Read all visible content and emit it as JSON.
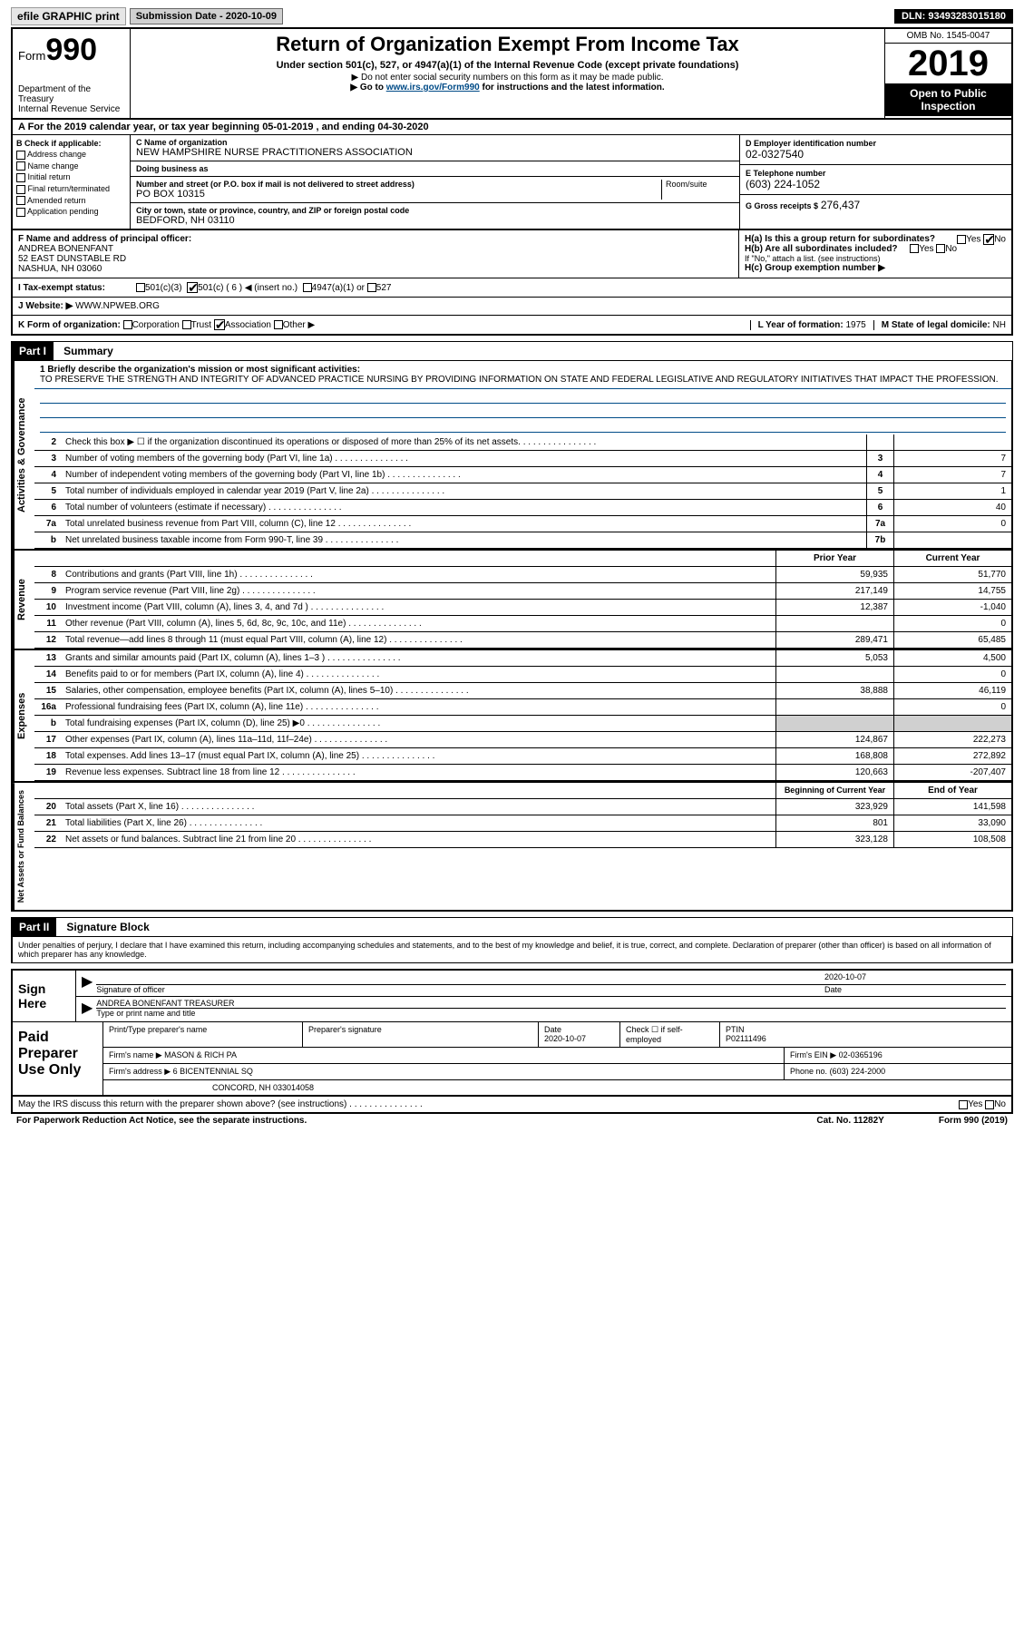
{
  "topbar": {
    "efile": "efile GRAPHIC print",
    "submission": "Submission Date - 2020-10-09",
    "dln": "DLN: 93493283015180"
  },
  "header": {
    "form_prefix": "Form",
    "form_num": "990",
    "dept": "Department of the Treasury\nInternal Revenue Service",
    "title": "Return of Organization Exempt From Income Tax",
    "subtitle": "Under section 501(c), 527, or 4947(a)(1) of the Internal Revenue Code (except private foundations)",
    "ssn_note": "▶ Do not enter social security numbers on this form as it may be made public.",
    "goto": "▶ Go to www.irs.gov/Form990 for instructions and the latest information.",
    "goto_url": "www.irs.gov/Form990",
    "omb": "OMB No. 1545-0047",
    "year": "2019",
    "open_pub": "Open to Public Inspection"
  },
  "tax_year": "A For the 2019 calendar year, or tax year beginning 05-01-2019     , and ending 04-30-2020",
  "b_checks": {
    "title": "B Check if applicable:",
    "items": [
      "Address change",
      "Name change",
      "Initial return",
      "Final return/terminated",
      "Amended return",
      "Application pending"
    ]
  },
  "c_name": {
    "lbl": "C Name of organization",
    "val": "NEW HAMPSHIRE NURSE PRACTITIONERS ASSOCIATION",
    "dba_lbl": "Doing business as"
  },
  "addr": {
    "lbl": "Number and street (or P.O. box if mail is not delivered to street address)",
    "val": "PO BOX 10315",
    "room_lbl": "Room/suite",
    "city_lbl": "City or town, state or province, country, and ZIP or foreign postal code",
    "city_val": "BEDFORD, NH  03110"
  },
  "d_ein": {
    "lbl": "D Employer identification number",
    "val": "02-0327540"
  },
  "e_tel": {
    "lbl": "E Telephone number",
    "val": "(603) 224-1052"
  },
  "g_gross": {
    "lbl": "G Gross receipts $",
    "val": "276,437"
  },
  "f_officer": {
    "lbl": "F  Name and address of principal officer:",
    "name": "ANDREA BONENFANT",
    "addr1": "52 EAST DUNSTABLE RD",
    "addr2": "NASHUA, NH  03060"
  },
  "h": {
    "a_lbl": "H(a)  Is this a group return for subordinates?",
    "b_lbl": "H(b)  Are all subordinates included?",
    "note": "If \"No,\" attach a list. (see instructions)",
    "c_lbl": "H(c)  Group exemption number ▶"
  },
  "i_status": {
    "lbl": "I   Tax-exempt status:",
    "opts": [
      "501(c)(3)",
      "501(c) ( 6 ) ◀ (insert no.)",
      "4947(a)(1) or",
      "527"
    ]
  },
  "j_web": {
    "lbl": "J   Website: ▶",
    "val": "WWW.NPWEB.ORG"
  },
  "k_form": {
    "lbl": "K Form of organization:",
    "opts": [
      "Corporation",
      "Trust",
      "Association",
      "Other ▶"
    ]
  },
  "l_year": {
    "lbl": "L Year of formation:",
    "val": "1975"
  },
  "m_state": {
    "lbl": "M State of legal domicile:",
    "val": "NH"
  },
  "part1": {
    "hdr": "Part I",
    "title": "Summary"
  },
  "mission": {
    "line1_lbl": "1  Briefly describe the organization's mission or most significant activities:",
    "text": "TO PRESERVE THE STRENGTH AND INTEGRITY OF ADVANCED PRACTICE NURSING BY PROVIDING INFORMATION ON STATE AND FEDERAL LEGISLATIVE AND REGULATORY INITIATIVES THAT IMPACT THE PROFESSION."
  },
  "gov_lines": [
    {
      "n": "2",
      "t": "Check this box ▶ ☐  if the organization discontinued its operations or disposed of more than 25% of its net assets.",
      "box": "",
      "v": ""
    },
    {
      "n": "3",
      "t": "Number of voting members of the governing body (Part VI, line 1a)",
      "box": "3",
      "v": "7"
    },
    {
      "n": "4",
      "t": "Number of independent voting members of the governing body (Part VI, line 1b)",
      "box": "4",
      "v": "7"
    },
    {
      "n": "5",
      "t": "Total number of individuals employed in calendar year 2019 (Part V, line 2a)",
      "box": "5",
      "v": "1"
    },
    {
      "n": "6",
      "t": "Total number of volunteers (estimate if necessary)",
      "box": "6",
      "v": "40"
    },
    {
      "n": "7a",
      "t": "Total unrelated business revenue from Part VIII, column (C), line 12",
      "box": "7a",
      "v": "0"
    },
    {
      "n": "b",
      "t": "Net unrelated business taxable income from Form 990-T, line 39",
      "box": "7b",
      "v": ""
    }
  ],
  "rev_hdr": {
    "prior": "Prior Year",
    "current": "Current Year"
  },
  "rev_lines": [
    {
      "n": "8",
      "t": "Contributions and grants (Part VIII, line 1h)",
      "p": "59,935",
      "c": "51,770"
    },
    {
      "n": "9",
      "t": "Program service revenue (Part VIII, line 2g)",
      "p": "217,149",
      "c": "14,755"
    },
    {
      "n": "10",
      "t": "Investment income (Part VIII, column (A), lines 3, 4, and 7d )",
      "p": "12,387",
      "c": "-1,040"
    },
    {
      "n": "11",
      "t": "Other revenue (Part VIII, column (A), lines 5, 6d, 8c, 9c, 10c, and 11e)",
      "p": "",
      "c": "0"
    },
    {
      "n": "12",
      "t": "Total revenue—add lines 8 through 11 (must equal Part VIII, column (A), line 12)",
      "p": "289,471",
      "c": "65,485"
    }
  ],
  "exp_lines": [
    {
      "n": "13",
      "t": "Grants and similar amounts paid (Part IX, column (A), lines 1–3 )",
      "p": "5,053",
      "c": "4,500"
    },
    {
      "n": "14",
      "t": "Benefits paid to or for members (Part IX, column (A), line 4)",
      "p": "",
      "c": "0"
    },
    {
      "n": "15",
      "t": "Salaries, other compensation, employee benefits (Part IX, column (A), lines 5–10)",
      "p": "38,888",
      "c": "46,119"
    },
    {
      "n": "16a",
      "t": "Professional fundraising fees (Part IX, column (A), line 11e)",
      "p": "",
      "c": "0"
    },
    {
      "n": "b",
      "t": "Total fundraising expenses (Part IX, column (D), line 25) ▶0",
      "p": "",
      "c": "",
      "grey": true
    },
    {
      "n": "17",
      "t": "Other expenses (Part IX, column (A), lines 11a–11d, 11f–24e)",
      "p": "124,867",
      "c": "222,273"
    },
    {
      "n": "18",
      "t": "Total expenses. Add lines 13–17 (must equal Part IX, column (A), line 25)",
      "p": "168,808",
      "c": "272,892"
    },
    {
      "n": "19",
      "t": "Revenue less expenses. Subtract line 18 from line 12",
      "p": "120,663",
      "c": "-207,407"
    }
  ],
  "net_hdr": {
    "beg": "Beginning of Current Year",
    "end": "End of Year"
  },
  "net_lines": [
    {
      "n": "20",
      "t": "Total assets (Part X, line 16)",
      "p": "323,929",
      "c": "141,598"
    },
    {
      "n": "21",
      "t": "Total liabilities (Part X, line 26)",
      "p": "801",
      "c": "33,090"
    },
    {
      "n": "22",
      "t": "Net assets or fund balances. Subtract line 21 from line 20",
      "p": "323,128",
      "c": "108,508"
    }
  ],
  "side_labels": {
    "gov": "Activities & Governance",
    "rev": "Revenue",
    "exp": "Expenses",
    "net": "Net Assets or Fund Balances"
  },
  "part2": {
    "hdr": "Part II",
    "title": "Signature Block"
  },
  "sig_decl": "Under penalties of perjury, I declare that I have examined this return, including accompanying schedules and statements, and to the best of my knowledge and belief, it is true, correct, and complete. Declaration of preparer (other than officer) is based on all information of which preparer has any knowledge.",
  "sign": {
    "lbl": "Sign Here",
    "sig_officer": "Signature of officer",
    "date": "2020-10-07",
    "date_lbl": "Date",
    "name": "ANDREA BONENFANT TREASURER",
    "name_lbl": "Type or print name and title"
  },
  "prep": {
    "lbl": "Paid Preparer Use Only",
    "c1": "Print/Type preparer's name",
    "c2": "Preparer's signature",
    "c3": "Date",
    "c3v": "2020-10-07",
    "c4": "Check ☐ if self-employed",
    "c5": "PTIN",
    "c5v": "P02111496",
    "firm_lbl": "Firm's name    ▶",
    "firm": "MASON & RICH PA",
    "ein_lbl": "Firm's EIN ▶",
    "ein": "02-0365196",
    "addr_lbl": "Firm's address ▶",
    "addr1": "6 BICENTENNIAL SQ",
    "addr2": "CONCORD, NH  033014058",
    "phone_lbl": "Phone no.",
    "phone": "(603) 224-2000"
  },
  "discuss": "May the IRS discuss this return with the preparer shown above? (see instructions)",
  "footer": {
    "left": "For Paperwork Reduction Act Notice, see the separate instructions.",
    "mid": "Cat. No. 11282Y",
    "right": "Form 990 (2019)"
  }
}
